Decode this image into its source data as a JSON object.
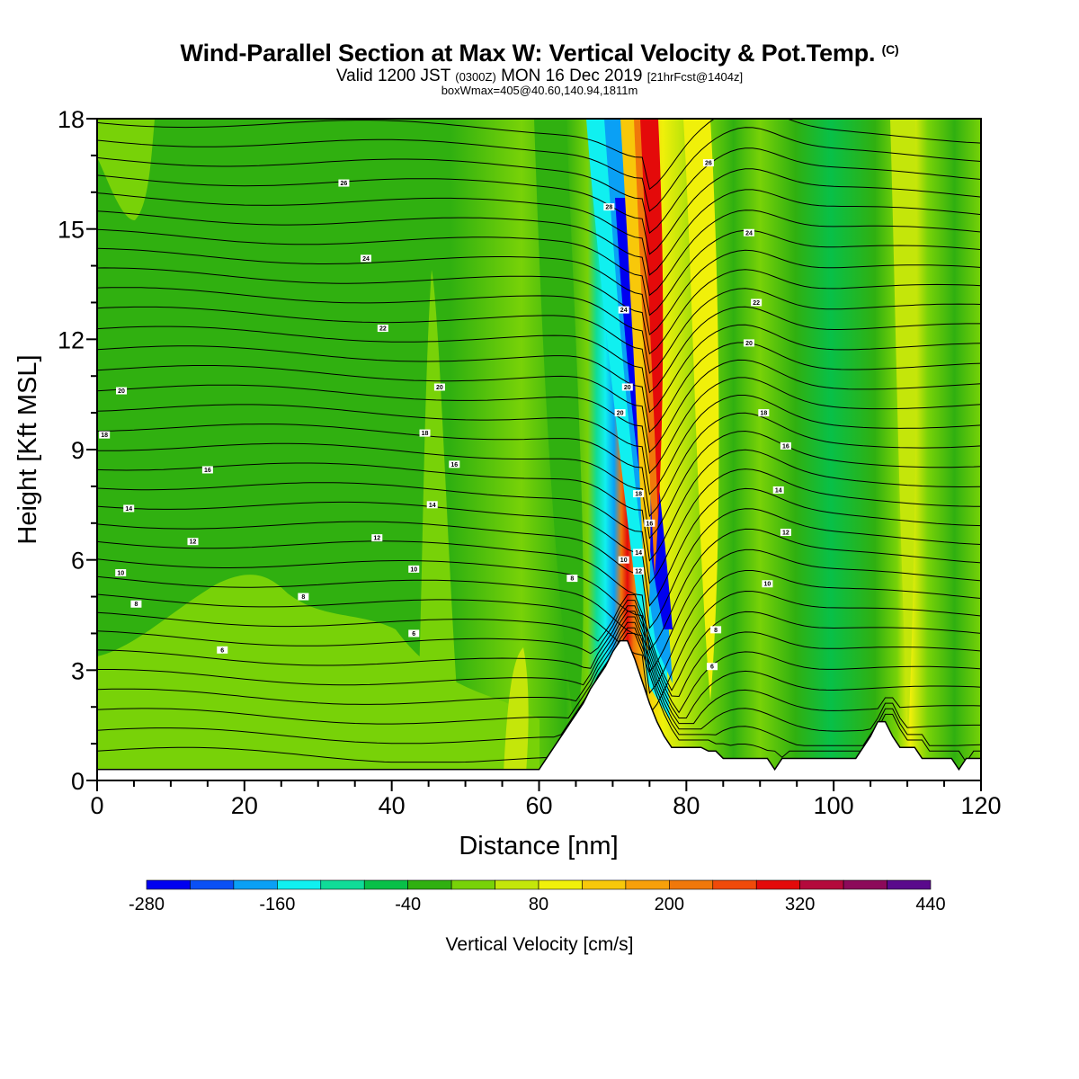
{
  "title": {
    "main": "Wind-Parallel Section at Max W: Vertical Velocity & Pot.Temp.",
    "copyright": "(C)",
    "valid_prefix": "Valid 1200 JST",
    "valid_utc": "(0300Z)",
    "valid_date": "MON 16 Dec 2019",
    "forecast": "[21hrFcst@1404z]",
    "boxline": "boxWmax=405@40.60,140.94,1811m"
  },
  "chart_data": {
    "type": "heatmap",
    "xlabel": "Distance [nm]",
    "ylabel": "Height [Kft MSL]",
    "xlim": [
      0,
      120
    ],
    "ylim": [
      0,
      18
    ],
    "x_ticks": [
      "0",
      "20",
      "40",
      "60",
      "80",
      "100",
      "120"
    ],
    "y_ticks": [
      "0",
      "3",
      "6",
      "9",
      "12",
      "15",
      "18"
    ],
    "colorbar": {
      "title": "Vertical Velocity [cm/s]",
      "labels": [
        "-280",
        "-160",
        "-40",
        "80",
        "200",
        "320",
        "440"
      ],
      "label_values": [
        -280,
        -160,
        -40,
        80,
        200,
        320,
        440
      ],
      "levels": [
        -280,
        -240,
        -200,
        -160,
        -120,
        -80,
        -40,
        0,
        40,
        80,
        120,
        160,
        200,
        240,
        280,
        320,
        360,
        400,
        440
      ],
      "colors": [
        "#0000f0",
        "#0a50f5",
        "#0aa0f5",
        "#10f0f0",
        "#10dc98",
        "#08c048",
        "#30b010",
        "#78d208",
        "#c4e60a",
        "#f0f00a",
        "#f8c80a",
        "#f8a00a",
        "#f0780a",
        "#f04a0a",
        "#e40a0a",
        "#b40a3c",
        "#8c0a5a",
        "#5a0a8c"
      ]
    },
    "terrain_kft": [
      [
        0,
        0.3
      ],
      [
        60,
        0.3
      ],
      [
        61,
        0.6
      ],
      [
        62,
        0.9
      ],
      [
        63,
        1.2
      ],
      [
        64,
        1.5
      ],
      [
        65,
        1.8
      ],
      [
        66,
        2.1
      ],
      [
        67,
        2.5
      ],
      [
        68,
        2.8
      ],
      [
        69,
        3.1
      ],
      [
        70,
        3.5
      ],
      [
        71,
        3.8
      ],
      [
        72,
        3.8
      ],
      [
        73,
        3.3
      ],
      [
        74,
        2.7
      ],
      [
        75,
        2.1
      ],
      [
        76,
        1.6
      ],
      [
        77,
        1.2
      ],
      [
        78,
        0.9
      ],
      [
        79,
        0.9
      ],
      [
        80,
        0.9
      ],
      [
        81,
        0.9
      ],
      [
        82,
        0.9
      ],
      [
        83,
        0.8
      ],
      [
        84,
        0.8
      ],
      [
        85,
        0.6
      ],
      [
        86,
        0.6
      ],
      [
        87,
        0.6
      ],
      [
        88,
        0.6
      ],
      [
        89,
        0.6
      ],
      [
        90,
        0.6
      ],
      [
        91,
        0.6
      ],
      [
        92,
        0.3
      ],
      [
        93,
        0.6
      ],
      [
        94,
        0.6
      ],
      [
        95,
        0.6
      ],
      [
        96,
        0.6
      ],
      [
        97,
        0.6
      ],
      [
        98,
        0.6
      ],
      [
        99,
        0.6
      ],
      [
        100,
        0.6
      ],
      [
        101,
        0.6
      ],
      [
        102,
        0.6
      ],
      [
        103,
        0.6
      ],
      [
        104,
        0.9
      ],
      [
        105,
        1.2
      ],
      [
        106,
        1.6
      ],
      [
        107,
        1.6
      ],
      [
        108,
        1.2
      ],
      [
        109,
        0.9
      ],
      [
        110,
        0.9
      ],
      [
        111,
        0.9
      ],
      [
        112,
        0.6
      ],
      [
        113,
        0.6
      ],
      [
        114,
        0.6
      ],
      [
        115,
        0.6
      ],
      [
        116,
        0.6
      ],
      [
        117,
        0.3
      ],
      [
        118,
        0.6
      ],
      [
        119,
        0.6
      ],
      [
        120,
        0.6
      ]
    ],
    "theta_contours": {
      "color": "#000000",
      "labels": [
        {
          "text": "26",
          "x": 33.5,
          "y": 16.25
        },
        {
          "text": "24",
          "x": 36.5,
          "y": 14.2
        },
        {
          "text": "22",
          "x": 38.8,
          "y": 12.3
        },
        {
          "text": "20",
          "x": 3.3,
          "y": 10.6
        },
        {
          "text": "20",
          "x": 46.5,
          "y": 10.7
        },
        {
          "text": "18",
          "x": 1.0,
          "y": 9.4
        },
        {
          "text": "18",
          "x": 44.5,
          "y": 9.45
        },
        {
          "text": "16",
          "x": 15.0,
          "y": 8.45
        },
        {
          "text": "16",
          "x": 48.5,
          "y": 8.6
        },
        {
          "text": "14",
          "x": 4.3,
          "y": 7.4
        },
        {
          "text": "14",
          "x": 45.5,
          "y": 7.5
        },
        {
          "text": "12",
          "x": 13.0,
          "y": 6.5
        },
        {
          "text": "12",
          "x": 38.0,
          "y": 6.6
        },
        {
          "text": "10",
          "x": 3.2,
          "y": 5.65
        },
        {
          "text": "10",
          "x": 43.0,
          "y": 5.75
        },
        {
          "text": "8",
          "x": 5.3,
          "y": 4.8
        },
        {
          "text": "8",
          "x": 28.0,
          "y": 5.0
        },
        {
          "text": "6",
          "x": 17.0,
          "y": 3.55
        },
        {
          "text": "6",
          "x": 43.0,
          "y": 4.0
        },
        {
          "text": "8",
          "x": 64.5,
          "y": 5.5
        },
        {
          "text": "28",
          "x": 69.5,
          "y": 15.6
        },
        {
          "text": "24",
          "x": 71.5,
          "y": 12.8
        },
        {
          "text": "20",
          "x": 72.0,
          "y": 10.7
        },
        {
          "text": "20",
          "x": 71.0,
          "y": 10.0
        },
        {
          "text": "18",
          "x": 73.5,
          "y": 7.8
        },
        {
          "text": "16",
          "x": 75.0,
          "y": 7.0
        },
        {
          "text": "14",
          "x": 73.5,
          "y": 6.2
        },
        {
          "text": "12",
          "x": 73.5,
          "y": 5.7
        },
        {
          "text": "10",
          "x": 71.5,
          "y": 6.0
        },
        {
          "text": "26",
          "x": 83.0,
          "y": 16.8
        },
        {
          "text": "24",
          "x": 88.5,
          "y": 14.9
        },
        {
          "text": "22",
          "x": 89.5,
          "y": 13.0
        },
        {
          "text": "20",
          "x": 88.5,
          "y": 11.9
        },
        {
          "text": "18",
          "x": 90.5,
          "y": 10.0
        },
        {
          "text": "16",
          "x": 93.5,
          "y": 9.1
        },
        {
          "text": "14",
          "x": 92.5,
          "y": 7.9
        },
        {
          "text": "12",
          "x": 93.5,
          "y": 6.75
        },
        {
          "text": "10",
          "x": 91.0,
          "y": 5.35
        },
        {
          "text": "8",
          "x": 84.0,
          "y": 4.1
        },
        {
          "text": "6",
          "x": 83.5,
          "y": 3.1
        }
      ]
    }
  }
}
